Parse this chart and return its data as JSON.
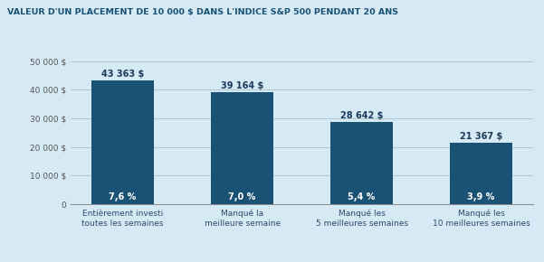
{
  "title": "VALEUR D'UN PLACEMENT DE 10 000 $ DANS L'INDICE S&P 500 PENDANT 20 ANS",
  "categories": [
    "Entièrement investi\ntoutes les semaines",
    "Manqué la\nmeilleure semaine",
    "Manqué les\n5 meilleures semaines",
    "Manqué les\n10 meilleures semaines"
  ],
  "values": [
    43363,
    39164,
    28642,
    21367
  ],
  "value_labels": [
    "43 363 $",
    "39 164 $",
    "28 642 $",
    "21 367 $"
  ],
  "rate_labels": [
    "7,6 %",
    "7,0 %",
    "5,4 %",
    "3,9 %"
  ],
  "bar_color": "#1a5276",
  "background_color": "#d6eaf5",
  "plot_bg_color": "#d6eaf5",
  "title_color": "#1a5276",
  "ylim": [
    0,
    53000
  ],
  "yticks": [
    0,
    10000,
    20000,
    30000,
    40000,
    50000
  ],
  "ytick_labels": [
    "0",
    "10 000 $",
    "20 000 $",
    "30 000 $",
    "40 000 $",
    "50 000 $"
  ],
  "grid_color": "#aec6cf",
  "value_label_color": "#1a3a5c",
  "rate_label_color": "#ffffff",
  "xlabel_color": "#2c4a6e"
}
